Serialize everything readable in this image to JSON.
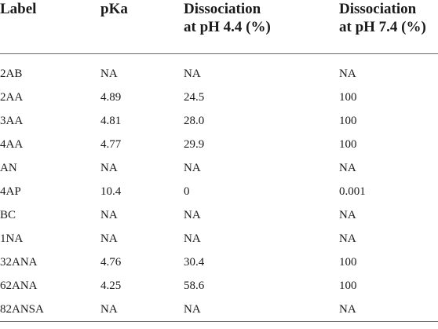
{
  "table": {
    "headers": [
      [
        "Label"
      ],
      [
        "pKa"
      ],
      [
        "Dissociation",
        "at pH 4.4 (%)"
      ],
      [
        "Dissociation",
        "at pH 7.4 (%)"
      ]
    ],
    "rows": [
      [
        "2AB",
        "NA",
        "NA",
        "NA"
      ],
      [
        "2AA",
        "4.89",
        "24.5",
        "100"
      ],
      [
        "3AA",
        "4.81",
        "28.0",
        "100"
      ],
      [
        "4AA",
        "4.77",
        "29.9",
        "100"
      ],
      [
        "AN",
        "NA",
        "NA",
        "NA"
      ],
      [
        "4AP",
        "10.4",
        "0",
        "0.001"
      ],
      [
        "BC",
        "NA",
        "NA",
        "NA"
      ],
      [
        "1NA",
        "NA",
        "NA",
        "NA"
      ],
      [
        "32ANA",
        "4.76",
        "30.4",
        "100"
      ],
      [
        "62ANA",
        "4.25",
        "58.6",
        "100"
      ],
      [
        "82ANSA",
        "NA",
        "NA",
        "NA"
      ]
    ]
  }
}
